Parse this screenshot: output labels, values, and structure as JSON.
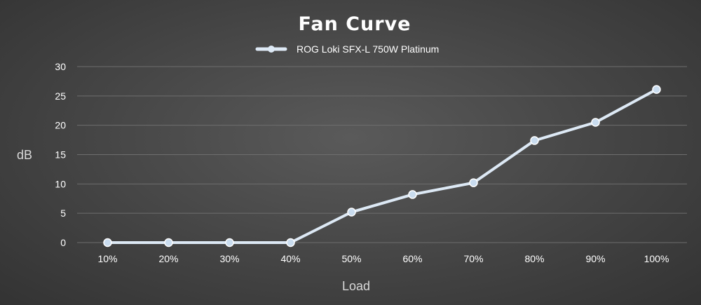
{
  "chart_data": {
    "type": "line",
    "title": "Fan Curve",
    "xlabel": "Load",
    "ylabel": "dB",
    "categories": [
      "10%",
      "20%",
      "30%",
      "40%",
      "50%",
      "60%",
      "70%",
      "80%",
      "90%",
      "100%"
    ],
    "series": [
      {
        "name": "ROG Loki SFX-L 750W Platinum",
        "values": [
          0,
          0,
          0,
          0,
          5.2,
          8.2,
          10.2,
          17.4,
          20.5,
          26.1
        ],
        "color": "#dde9f5"
      }
    ],
    "ylim": [
      0,
      30
    ],
    "yticks": [
      0,
      5,
      10,
      15,
      20,
      25,
      30
    ],
    "grid": true,
    "legend_position": "top-center"
  }
}
